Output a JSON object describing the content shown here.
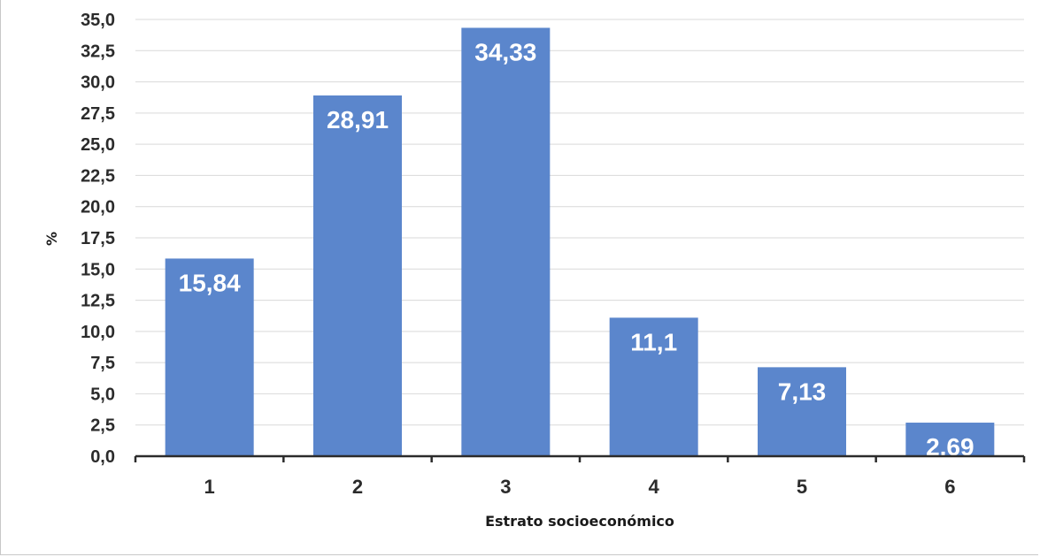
{
  "chart_data": {
    "type": "bar",
    "categories": [
      "1",
      "2",
      "3",
      "4",
      "5",
      "6"
    ],
    "values": [
      15.84,
      28.91,
      34.33,
      11.1,
      7.13,
      2.69
    ],
    "data_labels": [
      "15,84",
      "28,91",
      "34,33",
      "11,1",
      "7,13",
      "2,69"
    ],
    "xlabel": "Estrato socioeconómico",
    "ylabel": "%",
    "ylim": [
      0,
      35
    ],
    "ytick_labels": [
      "0,0",
      "2,5",
      "5,0",
      "7,5",
      "10,0",
      "12,5",
      "15,0",
      "17,5",
      "20,0",
      "22,5",
      "25,0",
      "27,5",
      "30,0",
      "32,5",
      "35,0"
    ],
    "grid": true,
    "bar_color": "#5b86cc",
    "grid_color": "#d9d9d9",
    "axis_color": "#2b2b2b"
  }
}
